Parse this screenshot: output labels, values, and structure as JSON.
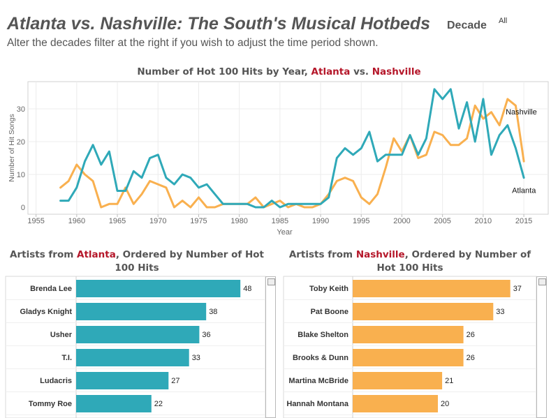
{
  "header": {
    "title": "Atlanta vs. Nashville: The South's Musical Hotbeds",
    "subtitle": "Alter the decades filter at the right if you wish to adjust the time period shown.",
    "filter_label": "Decade",
    "filter_value": "All"
  },
  "line_chart": {
    "title_pre": "Number of Hot 100 Hits by Year, ",
    "title_atlanta": "Atlanta",
    "title_mid": " vs. ",
    "title_nashville": "Nashville"
  },
  "atlanta_bars": {
    "title_pre": "Artists from ",
    "title_city": "Atlanta",
    "title_post": ", Ordered by Number of Hot 100 Hits"
  },
  "nashville_bars": {
    "title_pre": "Artists from ",
    "title_city": "Nashville",
    "title_post": ", Ordered by Number of Hot 100 Hits"
  },
  "colors": {
    "atlanta": "#2fa9b8",
    "nashville": "#f9b04f",
    "accent_red": "#b5172a"
  },
  "chart_data": [
    {
      "type": "line",
      "title": "Number of Hot 100 Hits by Year, Atlanta vs. Nashville",
      "xlabel": "Year",
      "ylabel": "Number of Hit Songs",
      "xlim": [
        1954,
        2018
      ],
      "ylim": [
        0,
        38
      ],
      "xticks": [
        1955,
        1960,
        1965,
        1970,
        1975,
        1980,
        1985,
        1990,
        1995,
        2000,
        2005,
        2010,
        2015
      ],
      "yticks": [
        0,
        10,
        20,
        30
      ],
      "grid": true,
      "x": [
        1958,
        1959,
        1960,
        1961,
        1962,
        1963,
        1964,
        1965,
        1966,
        1967,
        1968,
        1969,
        1970,
        1971,
        1972,
        1973,
        1974,
        1975,
        1976,
        1977,
        1978,
        1979,
        1980,
        1981,
        1982,
        1983,
        1984,
        1985,
        1986,
        1987,
        1988,
        1989,
        1990,
        1991,
        1992,
        1993,
        1994,
        1995,
        1996,
        1997,
        1998,
        1999,
        2000,
        2001,
        2002,
        2003,
        2004,
        2005,
        2006,
        2007,
        2008,
        2009,
        2010,
        2011,
        2012,
        2013,
        2014,
        2015
      ],
      "series": [
        {
          "name": "Atlanta",
          "values": [
            2,
            2,
            6,
            14,
            19,
            13,
            17,
            5,
            5,
            11,
            9,
            15,
            16,
            9,
            7,
            10,
            9,
            6,
            7,
            4,
            1,
            1,
            1,
            1,
            0,
            0,
            2,
            0,
            1,
            1,
            1,
            1,
            1,
            3,
            15,
            18,
            16,
            18,
            23,
            14,
            16,
            16,
            16,
            22,
            16,
            21,
            36,
            33,
            36,
            24,
            32,
            20,
            33,
            16,
            22,
            25,
            18,
            9
          ]
        },
        {
          "name": "Nashville",
          "values": [
            6,
            8,
            13,
            10,
            8,
            0,
            1,
            1,
            6,
            1,
            4,
            8,
            7,
            6,
            0,
            2,
            0,
            3,
            0,
            0,
            1,
            1,
            1,
            1,
            3,
            0,
            1,
            2,
            0,
            1,
            0,
            0,
            1,
            4,
            8,
            9,
            8,
            3,
            1,
            4,
            12,
            21,
            17,
            22,
            15,
            16,
            23,
            22,
            19,
            19,
            21,
            31,
            27,
            29,
            25,
            33,
            31,
            14
          ]
        }
      ],
      "annotations": [
        "Nashville",
        "Atlanta"
      ]
    },
    {
      "type": "bar",
      "orientation": "horizontal",
      "title": "Artists from Atlanta, Ordered by Number of Hot 100 Hits",
      "categories": [
        "Brenda Lee",
        "Gladys Knight",
        "Usher",
        "T.I.",
        "Ludacris",
        "Tommy Roe"
      ],
      "values": [
        48,
        38,
        36,
        33,
        27,
        22
      ],
      "xlim": [
        0,
        52
      ]
    },
    {
      "type": "bar",
      "orientation": "horizontal",
      "title": "Artists from Nashville, Ordered by Number of Hot 100 Hits",
      "categories": [
        "Toby Keith",
        "Pat Boone",
        "Blake Shelton",
        "Brooks & Dunn",
        "Martina McBride",
        "Hannah Montana"
      ],
      "values": [
        37,
        33,
        26,
        26,
        21,
        20
      ],
      "xlim": [
        0,
        42
      ]
    }
  ]
}
